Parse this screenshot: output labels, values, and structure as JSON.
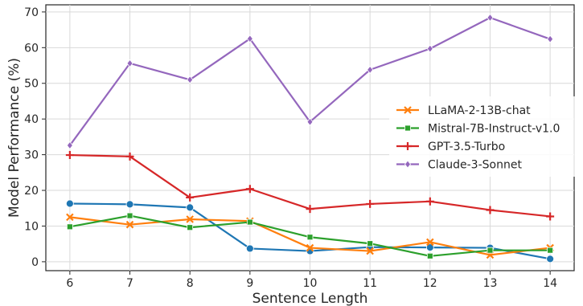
{
  "chart_data": {
    "type": "line",
    "title": "",
    "xlabel": "Sentence Length",
    "ylabel": "Model Performance (%)",
    "x": [
      6,
      7,
      8,
      9,
      10,
      11,
      12,
      13,
      14
    ],
    "xlim": [
      5.6,
      14.4
    ],
    "ylim": [
      -2.5,
      72
    ],
    "yticks": [
      0,
      10,
      20,
      30,
      40,
      50,
      60,
      70
    ],
    "grid": true,
    "legend_position": "center-right",
    "series": [
      {
        "name": "",
        "color": "#1f77b4",
        "marker": "circle",
        "in_legend": false,
        "values": [
          16.3,
          16.1,
          15.2,
          3.7,
          3.0,
          4.1,
          4.0,
          3.9,
          0.8
        ]
      },
      {
        "name": "LLaMA-2-13B-chat",
        "color": "#ff7f0e",
        "marker": "x",
        "in_legend": true,
        "values": [
          12.5,
          10.4,
          11.9,
          11.4,
          3.9,
          3.0,
          5.5,
          1.9,
          3.9
        ]
      },
      {
        "name": "Mistral-7B-Instruct-v1.0",
        "color": "#2ca02c",
        "marker": "square",
        "in_legend": true,
        "values": [
          9.8,
          12.9,
          9.6,
          11.1,
          6.9,
          5.1,
          1.6,
          3.2,
          3.2
        ]
      },
      {
        "name": "GPT-3.5-Turbo",
        "color": "#d62728",
        "marker": "plus",
        "in_legend": true,
        "values": [
          29.9,
          29.5,
          18.0,
          20.4,
          14.8,
          16.2,
          16.9,
          14.5,
          12.7
        ]
      },
      {
        "name": "Claude-3-Sonnet",
        "color": "#9467bd",
        "marker": "diamond",
        "in_legend": true,
        "values": [
          32.6,
          55.6,
          51.0,
          62.5,
          39.2,
          53.8,
          59.7,
          68.4,
          62.4
        ]
      }
    ]
  }
}
